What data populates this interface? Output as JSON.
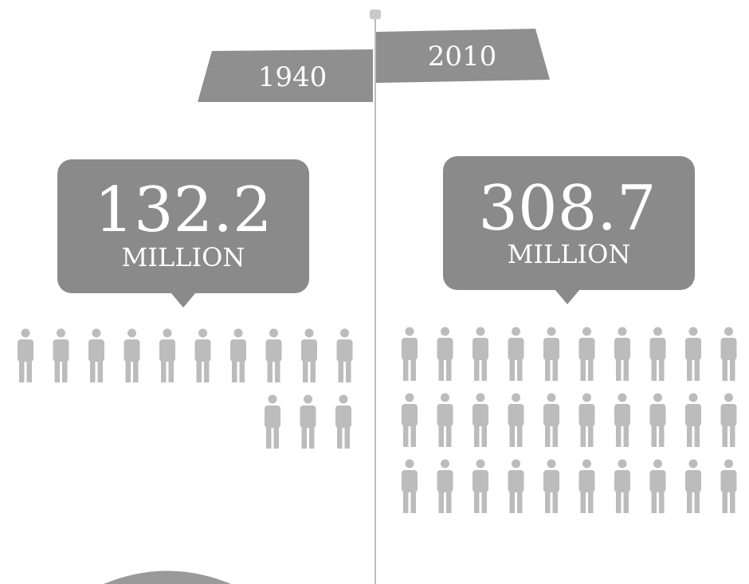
{
  "panels": [
    {
      "year": "1940",
      "population": "132.2",
      "unit": "MILLION"
    },
    {
      "year": "2010",
      "population": "308.7",
      "unit": "MILLION"
    }
  ]
}
